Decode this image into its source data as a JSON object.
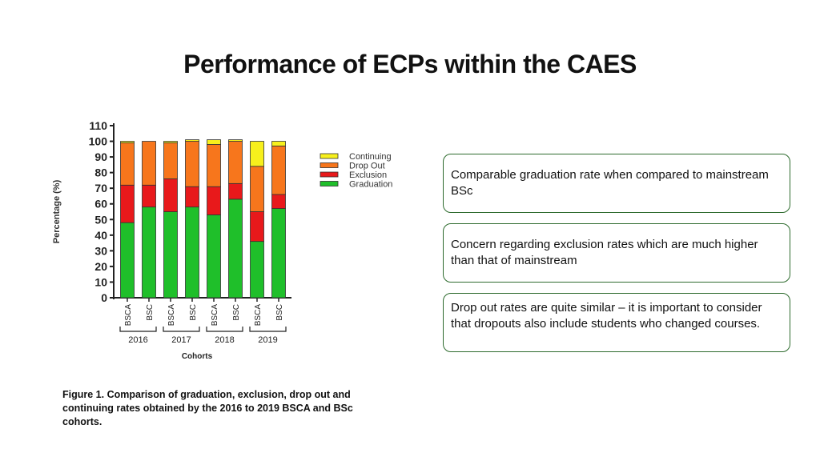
{
  "slide": {
    "title": "Performance of ECPs within the CAES",
    "caption": "Figure 1. Comparison of graduation, exclusion, drop out and continuing rates obtained by the 2016 to 2019 BSCA and BSc cohorts.",
    "notes": [
      "Comparable graduation rate when compared to mainstream BSc",
      "Concern regarding exclusion rates which are much higher than that of mainstream",
      "Drop out rates are quite similar – it is important to consider that dropouts also include students who changed courses."
    ],
    "note_border_color": "#2e6b2e"
  },
  "chart_data": {
    "type": "bar",
    "stacked": true,
    "categories": [
      "BSCA",
      "BSC",
      "BSCA",
      "BSC",
      "BSCA",
      "BSC",
      "BSCA",
      "BSC"
    ],
    "groups": [
      {
        "label": "2016",
        "categories": [
          0,
          1
        ]
      },
      {
        "label": "2017",
        "categories": [
          2,
          3
        ]
      },
      {
        "label": "2018",
        "categories": [
          4,
          5
        ]
      },
      {
        "label": "2019",
        "categories": [
          6,
          7
        ]
      }
    ],
    "series": [
      {
        "name": "Graduation",
        "color": "#1fbf2a",
        "values": [
          48,
          58,
          55,
          58,
          53,
          63,
          36,
          57
        ]
      },
      {
        "name": "Exclusion",
        "color": "#e8191b",
        "values": [
          24,
          14,
          21,
          13,
          18,
          10,
          19,
          9
        ]
      },
      {
        "name": "Drop Out",
        "color": "#f7761c",
        "values": [
          27,
          28,
          23,
          29,
          27,
          27,
          29,
          31
        ]
      },
      {
        "name": "Continuing",
        "color": "#f7f01c",
        "values": [
          1,
          0,
          1,
          1,
          3,
          1,
          16,
          3
        ]
      }
    ],
    "legend_order": [
      "Continuing",
      "Drop Out",
      "Exclusion",
      "Graduation"
    ],
    "legend_position": "right",
    "ylabel": "Percentage (%)",
    "xlabel": "Cohorts",
    "ylim": [
      0,
      110
    ],
    "yticks": [
      0,
      10,
      20,
      30,
      40,
      50,
      60,
      70,
      80,
      90,
      100,
      110
    ],
    "grid": false
  }
}
